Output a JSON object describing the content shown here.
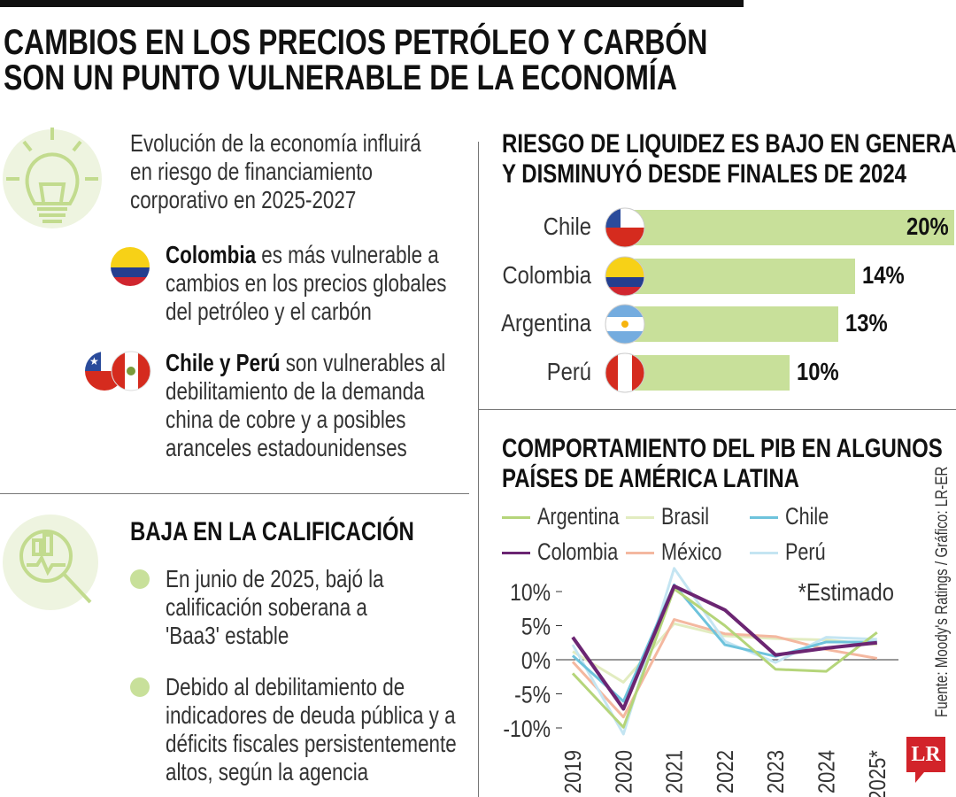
{
  "title": {
    "line1": "CAMBIOS EN LOS PRECIOS PETRÓLEO Y CARBÓN",
    "line2": "SON UN PUNTO VULNERABLE DE LA ECONOMÍA"
  },
  "intro": {
    "lines": [
      "Evolución de la economía influirá",
      "en riesgo de financiamiento",
      "corporativo en 2025-2027"
    ]
  },
  "colombia_note": {
    "bold": "Colombia",
    "rest": " es más vulnerable a",
    "lines": [
      "cambios en los precios globales",
      "del petróleo y el carbón"
    ]
  },
  "chile_peru_note": {
    "bold": "Chile y Perú",
    "rest": " son vulnerables al",
    "lines": [
      "debilitamiento de la demanda",
      "china de cobre y a posibles",
      "aranceles estadounidenses"
    ]
  },
  "rating": {
    "heading": "BAJA EN LA CALIFICACIÓN",
    "items": [
      [
        "En junio de 2025, bajó la",
        "calificación soberana a",
        "'Baa3' estable"
      ],
      [
        "Debido al debilitamiento de",
        "indicadores de deuda pública y a",
        "déficits fiscales persistentemente",
        "altos, según la agencia"
      ]
    ]
  },
  "source": "Fuente: Moody's Ratings / Gráfico: LR-ER",
  "logo": "LR",
  "colors": {
    "accent": "#c8e09a",
    "logo_red": "#d2232a"
  },
  "chart_data": [
    {
      "type": "bar",
      "title": [
        "RIESGO DE LIQUIDEZ ES BAJO EN GENERAL",
        "Y DISMINUYÓ DESDE FINALES DE 2024"
      ],
      "categories": [
        "Chile",
        "Colombia",
        "Argentina",
        "Perú"
      ],
      "values": [
        20,
        14,
        13,
        10
      ],
      "labels": [
        "20%",
        "14%",
        "13%",
        "10%"
      ],
      "color": "#c8e09a"
    },
    {
      "type": "line",
      "title": [
        "COMPORTAMIENTO DEL PIB EN ALGUNOS",
        "PAÍSES DE AMÉRICA LATINA"
      ],
      "x": [
        "2019",
        "2020",
        "2021",
        "2022",
        "2023",
        "2024",
        "2025*"
      ],
      "ylim": [
        -10,
        12
      ],
      "yticks": [
        10,
        5,
        0,
        -5,
        -10
      ],
      "ytick_labels": [
        "10%",
        "5%",
        "0%",
        "-5%",
        "-10%"
      ],
      "annotation": "*Estimado",
      "legend": "top",
      "series": [
        {
          "name": "Argentina",
          "color": "#b5d57a",
          "values": [
            -2.0,
            -9.9,
            10.4,
            5.0,
            -1.4,
            -1.7,
            4.0
          ]
        },
        {
          "name": "Brasil",
          "color": "#e2ecc0",
          "values": [
            1.2,
            -3.3,
            5.3,
            3.5,
            3.1,
            2.9,
            2.2
          ]
        },
        {
          "name": "Chile",
          "color": "#6ec3dc",
          "values": [
            0.6,
            -6.1,
            11.0,
            2.2,
            0.5,
            2.6,
            2.6
          ]
        },
        {
          "name": "Colombia",
          "color": "#6b2572",
          "values": [
            3.3,
            -7.2,
            10.8,
            7.3,
            0.7,
            1.7,
            2.5
          ]
        },
        {
          "name": "México",
          "color": "#f4b8a0",
          "values": [
            -0.3,
            -8.4,
            5.9,
            3.8,
            3.4,
            1.5,
            0.2
          ]
        },
        {
          "name": "Perú",
          "color": "#c4e5f2",
          "values": [
            2.2,
            -10.9,
            13.4,
            2.7,
            -0.4,
            3.3,
            3.0
          ]
        }
      ]
    }
  ]
}
